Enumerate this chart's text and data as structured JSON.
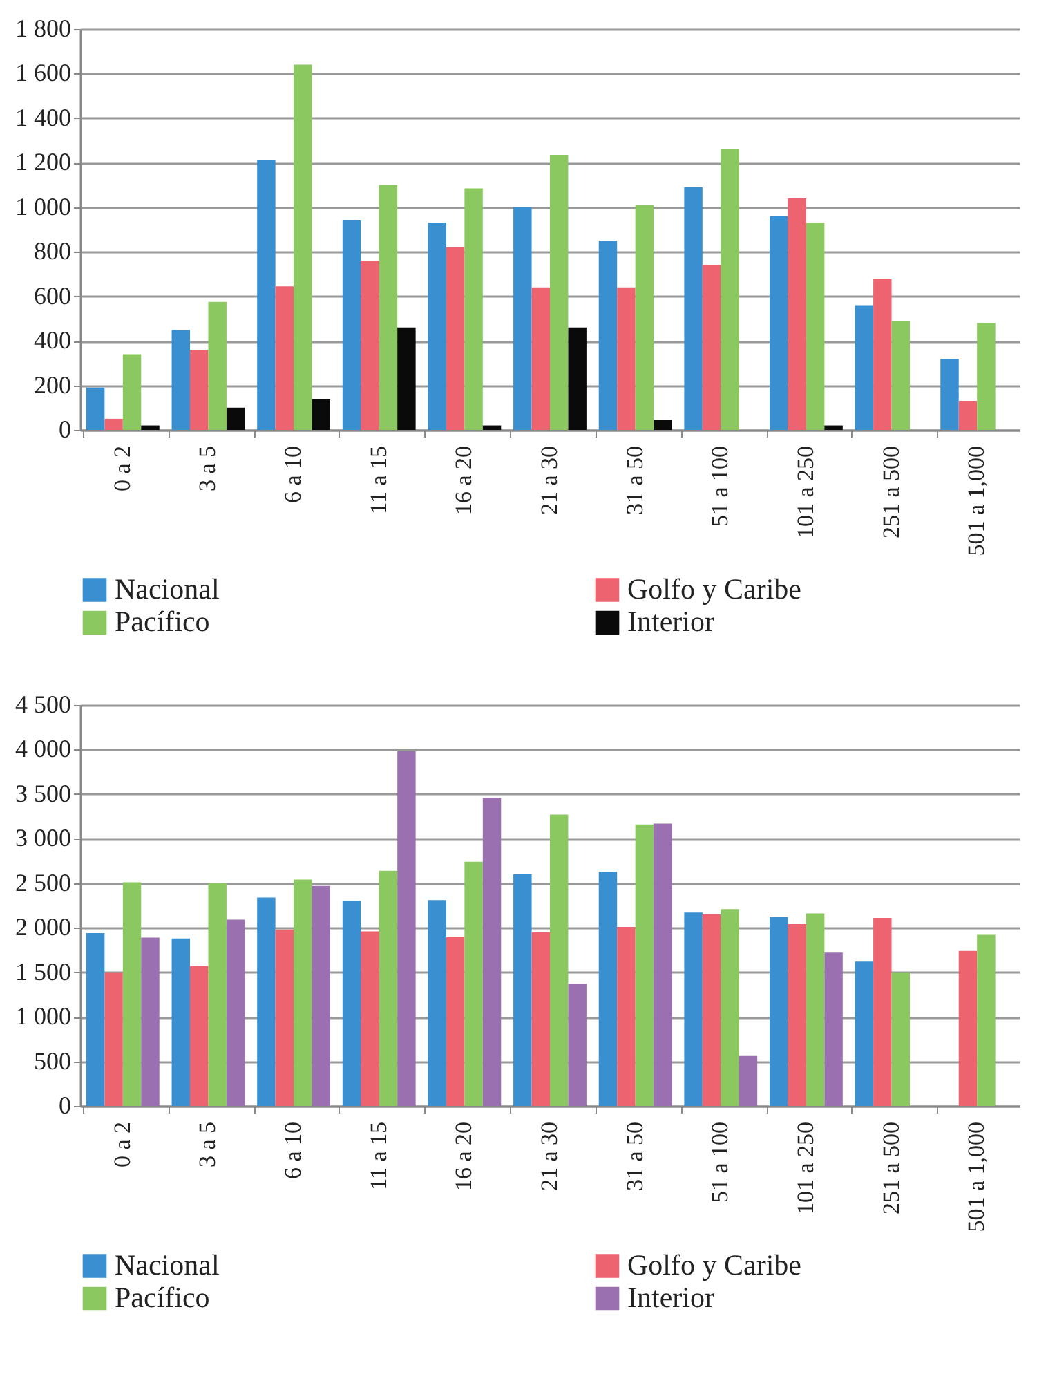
{
  "chart_data": [
    {
      "type": "bar",
      "categories": [
        "0 a 2",
        "3 a 5",
        "6 a 10",
        "11 a 15",
        "16 a 20",
        "21 a 30",
        "31 a 50",
        "51 a 100",
        "101 a 250",
        "251 a 500",
        "501 a 1,000"
      ],
      "series": [
        {
          "name": "Nacional",
          "color": "#3a8fd0",
          "values": [
            190,
            450,
            1210,
            940,
            930,
            1000,
            850,
            1090,
            960,
            560,
            320
          ]
        },
        {
          "name": "Golfo y Caribe",
          "color": "#ee6370",
          "values": [
            50,
            360,
            645,
            760,
            820,
            640,
            640,
            740,
            1040,
            680,
            130
          ]
        },
        {
          "name": "Pacífico",
          "color": "#8cc860",
          "values": [
            340,
            575,
            1640,
            1100,
            1085,
            1235,
            1010,
            1260,
            930,
            490,
            480
          ]
        },
        {
          "name": "Interior",
          "color": "#0a0a0a",
          "values": [
            20,
            100,
            140,
            460,
            20,
            460,
            45,
            null,
            20,
            null,
            null
          ]
        }
      ],
      "ylim": [
        0,
        1800
      ],
      "yticks": [
        0,
        200,
        400,
        600,
        800,
        {
          "value": 1000,
          "label": "1 000"
        },
        {
          "value": 1200,
          "label": "1 200"
        },
        {
          "value": 1400,
          "label": "1 400"
        },
        {
          "value": 1600,
          "label": "1 600"
        },
        {
          "value": 1800,
          "label": "1 800"
        }
      ],
      "grid": "y",
      "legend": "bottom"
    },
    {
      "type": "bar",
      "categories": [
        "0 a 2",
        "3 a 5",
        "6 a 10",
        "11 a 15",
        "16 a 20",
        "21 a 30",
        "31 a 50",
        "51 a 100",
        "101 a 250",
        "251 a 500",
        "501 a 1,000"
      ],
      "series": [
        {
          "name": "Nacional",
          "color": "#3a8fd0",
          "values": [
            1940,
            1880,
            2340,
            2300,
            2310,
            2600,
            2630,
            2170,
            2120,
            1620,
            null
          ]
        },
        {
          "name": "Golfo y Caribe",
          "color": "#ee6370",
          "values": [
            1500,
            1570,
            1980,
            1960,
            1900,
            1950,
            2010,
            2150,
            2040,
            2110,
            1740
          ]
        },
        {
          "name": "Pacífico",
          "color": "#8cc860",
          "values": [
            2510,
            2500,
            2540,
            2640,
            2740,
            3270,
            3160,
            2210,
            2160,
            1500,
            1920
          ]
        },
        {
          "name": "Interior",
          "color": "#9a70b0",
          "values": [
            1890,
            2090,
            2470,
            3980,
            3460,
            1370,
            3170,
            560,
            1720,
            null,
            null
          ]
        }
      ],
      "ylim": [
        0,
        4500
      ],
      "yticks": [
        0,
        500,
        {
          "value": 1000,
          "label": "1 000"
        },
        {
          "value": 1500,
          "label": "1 500"
        },
        {
          "value": 2000,
          "label": "2 000"
        },
        {
          "value": 2500,
          "label": "2 500"
        },
        {
          "value": 3000,
          "label": "3 000"
        },
        {
          "value": 3500,
          "label": "3 500"
        },
        {
          "value": 4000,
          "label": "4 000"
        },
        {
          "value": 4500,
          "label": "4 500"
        }
      ],
      "grid": "y",
      "legend": "bottom"
    }
  ]
}
